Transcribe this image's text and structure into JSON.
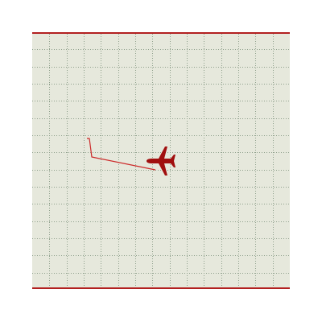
{
  "colors": {
    "board_background": "#e6e8dc",
    "grid_line": "#8fa08c",
    "border": "#b22020",
    "path": "#cc2a2a",
    "plane": "#a10f0f"
  },
  "icons": {
    "player": "airplane-icon"
  }
}
